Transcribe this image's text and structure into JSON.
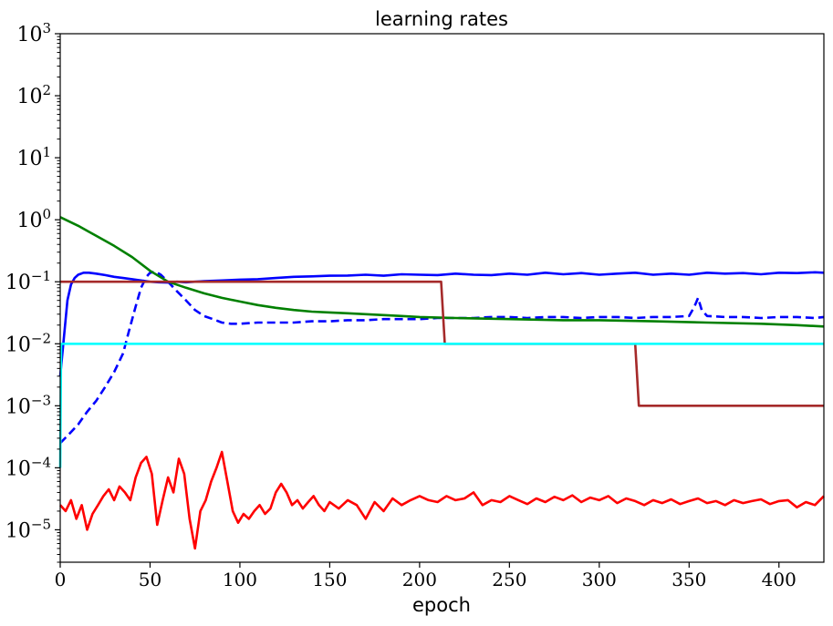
{
  "chart_data": {
    "type": "line",
    "title": "learning rates",
    "xlabel": "epoch",
    "ylabel": "",
    "yscale": "log",
    "xlim": [
      0,
      425
    ],
    "ylim": [
      3e-06,
      1000
    ],
    "grid": false,
    "x_ticks": [
      0,
      50,
      100,
      150,
      200,
      250,
      300,
      350,
      400
    ],
    "y_ticks": [
      {
        "base": "10",
        "exp": "−5",
        "value": 1e-05
      },
      {
        "base": "10",
        "exp": "−4",
        "value": 0.0001
      },
      {
        "base": "10",
        "exp": "−3",
        "value": 0.001
      },
      {
        "base": "10",
        "exp": "−2",
        "value": 0.01
      },
      {
        "base": "10",
        "exp": "−1",
        "value": 0.1
      },
      {
        "base": "10",
        "exp": "0",
        "value": 1
      },
      {
        "base": "10",
        "exp": "1",
        "value": 10
      },
      {
        "base": "10",
        "exp": "2",
        "value": 100
      },
      {
        "base": "10",
        "exp": "3",
        "value": 1000
      }
    ],
    "series": [
      {
        "color": "#0000ff",
        "style": "solid",
        "x": [
          0,
          2,
          4,
          6,
          8,
          10,
          13,
          16,
          20,
          25,
          30,
          35,
          40,
          45,
          50,
          55,
          60,
          65,
          70,
          75,
          80,
          90,
          100,
          110,
          120,
          130,
          140,
          150,
          160,
          170,
          180,
          190,
          200,
          210,
          220,
          230,
          240,
          250,
          260,
          270,
          280,
          290,
          300,
          310,
          320,
          330,
          340,
          350,
          360,
          370,
          380,
          390,
          400,
          410,
          420,
          425
        ],
        "y": [
          0.003,
          0.012,
          0.05,
          0.09,
          0.115,
          0.13,
          0.14,
          0.14,
          0.135,
          0.128,
          0.12,
          0.115,
          0.11,
          0.105,
          0.1,
          0.098,
          0.097,
          0.1,
          0.098,
          0.1,
          0.102,
          0.105,
          0.108,
          0.11,
          0.115,
          0.12,
          0.122,
          0.125,
          0.126,
          0.13,
          0.125,
          0.132,
          0.13,
          0.128,
          0.135,
          0.13,
          0.128,
          0.135,
          0.13,
          0.14,
          0.132,
          0.138,
          0.13,
          0.135,
          0.14,
          0.13,
          0.135,
          0.13,
          0.14,
          0.135,
          0.138,
          0.132,
          0.14,
          0.138,
          0.142,
          0.14
        ]
      },
      {
        "color": "#0000ff",
        "style": "dashed",
        "x": [
          0,
          5,
          10,
          15,
          20,
          25,
          30,
          35,
          38,
          42,
          45,
          48,
          50,
          53,
          56,
          60,
          65,
          70,
          75,
          80,
          85,
          90,
          95,
          100,
          110,
          120,
          130,
          140,
          150,
          160,
          170,
          180,
          190,
          200,
          210,
          220,
          230,
          240,
          250,
          260,
          270,
          280,
          290,
          300,
          310,
          320,
          330,
          340,
          350,
          353,
          355,
          357,
          360,
          370,
          380,
          390,
          400,
          410,
          420,
          425
        ],
        "y": [
          0.00025,
          0.00035,
          0.0005,
          0.0008,
          0.0012,
          0.002,
          0.0035,
          0.007,
          0.015,
          0.04,
          0.08,
          0.12,
          0.14,
          0.145,
          0.13,
          0.1,
          0.07,
          0.05,
          0.035,
          0.028,
          0.025,
          0.022,
          0.021,
          0.021,
          0.022,
          0.022,
          0.022,
          0.023,
          0.023,
          0.024,
          0.024,
          0.025,
          0.025,
          0.025,
          0.026,
          0.026,
          0.026,
          0.027,
          0.027,
          0.026,
          0.027,
          0.027,
          0.026,
          0.027,
          0.027,
          0.026,
          0.027,
          0.027,
          0.028,
          0.04,
          0.055,
          0.035,
          0.028,
          0.027,
          0.027,
          0.026,
          0.027,
          0.027,
          0.026,
          0.027
        ]
      },
      {
        "color": "#008000",
        "style": "solid",
        "x": [
          0,
          10,
          20,
          30,
          40,
          50,
          60,
          70,
          80,
          90,
          100,
          110,
          120,
          130,
          140,
          150,
          160,
          170,
          180,
          190,
          200,
          220,
          250,
          280,
          300,
          330,
          360,
          390,
          410,
          425
        ],
        "y": [
          1.1,
          0.8,
          0.55,
          0.38,
          0.25,
          0.15,
          0.1,
          0.08,
          0.065,
          0.055,
          0.048,
          0.042,
          0.038,
          0.035,
          0.033,
          0.032,
          0.031,
          0.03,
          0.029,
          0.028,
          0.027,
          0.026,
          0.025,
          0.024,
          0.024,
          0.023,
          0.022,
          0.021,
          0.02,
          0.019
        ]
      },
      {
        "color": "#a52a2a",
        "style": "solid",
        "x": [
          0,
          212,
          214,
          320,
          322,
          425
        ],
        "y": [
          0.1,
          0.1,
          0.01,
          0.01,
          0.001,
          0.001
        ]
      },
      {
        "color": "#00ffff",
        "style": "solid",
        "x": [
          0,
          0.5,
          425
        ],
        "y": [
          0.0001,
          0.01,
          0.01
        ]
      },
      {
        "color": "#ff0000",
        "style": "solid",
        "x": [
          0,
          3,
          6,
          9,
          12,
          15,
          18,
          21,
          24,
          27,
          30,
          33,
          36,
          39,
          42,
          45,
          48,
          51,
          54,
          57,
          60,
          63,
          66,
          69,
          72,
          75,
          78,
          81,
          84,
          87,
          90,
          93,
          96,
          99,
          102,
          105,
          108,
          111,
          114,
          117,
          120,
          123,
          126,
          129,
          132,
          135,
          138,
          141,
          144,
          147,
          150,
          155,
          160,
          165,
          170,
          175,
          180,
          185,
          190,
          195,
          200,
          205,
          210,
          215,
          220,
          225,
          230,
          235,
          240,
          245,
          250,
          255,
          260,
          265,
          270,
          275,
          280,
          285,
          290,
          295,
          300,
          305,
          310,
          315,
          320,
          325,
          330,
          335,
          340,
          345,
          350,
          355,
          360,
          365,
          370,
          375,
          380,
          385,
          390,
          395,
          400,
          405,
          410,
          415,
          420,
          425
        ],
        "y": [
          2.5e-05,
          2e-05,
          3e-05,
          1.5e-05,
          2.5e-05,
          1e-05,
          1.8e-05,
          2.5e-05,
          3.5e-05,
          4.5e-05,
          3e-05,
          5e-05,
          4e-05,
          3e-05,
          7e-05,
          0.00012,
          0.00015,
          8e-05,
          1.2e-05,
          3e-05,
          7e-05,
          4e-05,
          0.00014,
          8e-05,
          1.5e-05,
          5e-06,
          2e-05,
          3e-05,
          6e-05,
          0.0001,
          0.00018,
          6e-05,
          2e-05,
          1.3e-05,
          1.8e-05,
          1.5e-05,
          2e-05,
          2.5e-05,
          1.8e-05,
          2.2e-05,
          4e-05,
          5.5e-05,
          4e-05,
          2.5e-05,
          3e-05,
          2.2e-05,
          2.8e-05,
          3.5e-05,
          2.5e-05,
          2e-05,
          2.8e-05,
          2.2e-05,
          3e-05,
          2.5e-05,
          1.5e-05,
          2.8e-05,
          2e-05,
          3.2e-05,
          2.5e-05,
          3e-05,
          3.5e-05,
          3e-05,
          2.8e-05,
          3.5e-05,
          3e-05,
          3.2e-05,
          4e-05,
          2.5e-05,
          3e-05,
          2.8e-05,
          3.5e-05,
          3e-05,
          2.6e-05,
          3.2e-05,
          2.8e-05,
          3.4e-05,
          3e-05,
          3.6e-05,
          2.8e-05,
          3.3e-05,
          3e-05,
          3.5e-05,
          2.7e-05,
          3.2e-05,
          2.9e-05,
          2.5e-05,
          3e-05,
          2.7e-05,
          3.1e-05,
          2.6e-05,
          2.9e-05,
          3.2e-05,
          2.7e-05,
          2.9e-05,
          2.5e-05,
          3e-05,
          2.7e-05,
          2.9e-05,
          3.1e-05,
          2.6e-05,
          2.9e-05,
          3e-05,
          2.3e-05,
          2.8e-05,
          2.5e-05,
          3.5e-05
        ]
      }
    ]
  }
}
